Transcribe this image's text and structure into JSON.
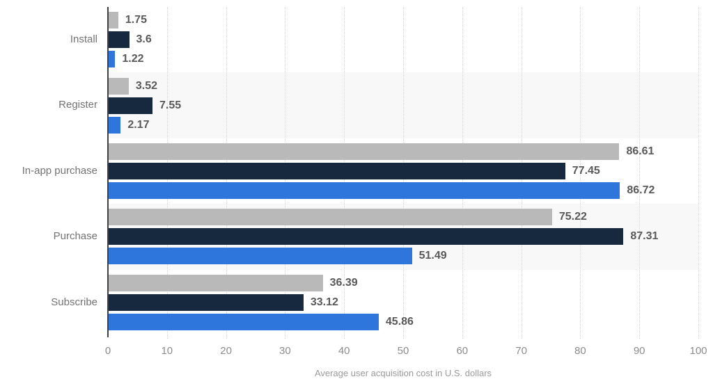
{
  "chart_data": {
    "type": "bar",
    "orientation": "horizontal",
    "title": "",
    "xlabel": "Average user acquisition cost in U.S. dollars",
    "ylabel": "",
    "xlim": [
      0,
      100
    ],
    "x_ticks": [
      0,
      10,
      20,
      30,
      40,
      50,
      60,
      70,
      80,
      90,
      100
    ],
    "grid": "vertical-dotted",
    "legend_position": "none",
    "row_band_alternate": true,
    "categories": [
      "Install",
      "Register",
      "In-app purchase",
      "Purchase",
      "Subscribe"
    ],
    "series": [
      {
        "name": "gray-series",
        "color": "#b9b9b9",
        "values": [
          1.75,
          3.52,
          86.61,
          75.22,
          36.39
        ],
        "labels": [
          "1.75",
          "3.52",
          "86.61",
          "75.22",
          "36.39"
        ]
      },
      {
        "name": "dark-navy-series",
        "color": "#17293f",
        "values": [
          3.6,
          7.55,
          77.45,
          87.31,
          33.12
        ],
        "labels": [
          "3.6",
          "7.55",
          "77.45",
          "87.31",
          "33.12"
        ]
      },
      {
        "name": "blue-series",
        "color": "#2e76dc",
        "values": [
          1.22,
          2.17,
          86.72,
          51.49,
          45.86
        ],
        "labels": [
          "1.22",
          "2.17",
          "86.72",
          "51.49",
          "45.86"
        ]
      }
    ],
    "colors": {
      "background": "#ffffff",
      "band_alt": "#f8f8f8",
      "gridline": "#d6d6d6",
      "axis_line": "#404040",
      "value_label": "#595959",
      "category_label": "#737373",
      "tick_label": "#8c8c8c",
      "axis_title": "#9a9a9a"
    }
  }
}
